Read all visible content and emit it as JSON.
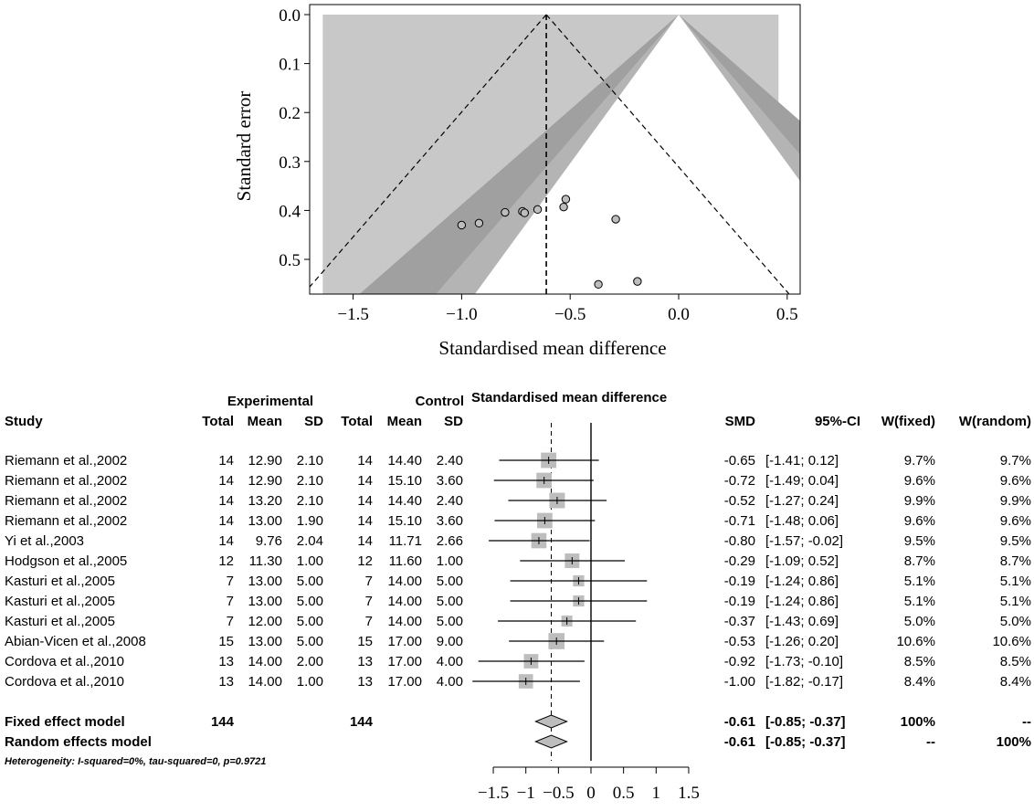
{
  "chart_data": [
    {
      "type": "scatter",
      "subtype": "contour-enhanced funnel plot",
      "title": "",
      "xlabel": "Standardised mean difference",
      "ylabel": "Standard error",
      "xlim": [
        -1.65,
        0.48
      ],
      "ylim": [
        0.57,
        0.0
      ],
      "y_reversed": true,
      "x_ticks": [
        "−1.5",
        "−1.0",
        "−0.5",
        "0.0",
        "0.5"
      ],
      "x_tick_values": [
        -1.5,
        -1.0,
        -0.5,
        0.0,
        0.5
      ],
      "y_ticks": [
        "0.0",
        "0.1",
        "0.2",
        "0.3",
        "0.4",
        "0.5"
      ],
      "y_tick_values": [
        0.0,
        0.1,
        0.2,
        0.3,
        0.4,
        0.5
      ],
      "pooled_estimate": -0.61,
      "contour_colors": [
        "#c8c8c8",
        "#b4b4b4",
        "#a0a0a0"
      ],
      "points": [
        {
          "x": -0.65,
          "y": 0.398
        },
        {
          "x": -0.72,
          "y": 0.402
        },
        {
          "x": -0.52,
          "y": 0.377
        },
        {
          "x": -0.71,
          "y": 0.405
        },
        {
          "x": -0.8,
          "y": 0.404
        },
        {
          "x": -0.29,
          "y": 0.418
        },
        {
          "x": -0.19,
          "y": 0.545
        },
        {
          "x": -0.37,
          "y": 0.551
        },
        {
          "x": -0.53,
          "y": 0.393
        },
        {
          "x": -0.92,
          "y": 0.426
        },
        {
          "x": -1.0,
          "y": 0.43
        }
      ],
      "grid": false
    },
    {
      "type": "table",
      "subtype": "forest plot",
      "group_header_experimental": "Experimental",
      "group_header_control": "Control",
      "plot_header": "Standardised mean difference",
      "columns": [
        "Study",
        "Total",
        "Mean",
        "SD",
        "Total",
        "Mean",
        "SD",
        "SMD",
        "95%-CI",
        "W(fixed)",
        "W(random)"
      ],
      "rows": [
        {
          "study": "Riemann et al.,2002",
          "e_total": "14",
          "e_mean": "12.90",
          "e_sd": "2.10",
          "c_total": "14",
          "c_mean": "14.40",
          "c_sd": "2.40",
          "smd": "-0.65",
          "ci": "[-1.41;  0.12]",
          "w_fixed": "9.7%",
          "w_random": "9.7%",
          "est": -0.65,
          "lo": -1.41,
          "hi": 0.12,
          "weight": 9.7
        },
        {
          "study": "Riemann et al.,2002",
          "e_total": "14",
          "e_mean": "12.90",
          "e_sd": "2.10",
          "c_total": "14",
          "c_mean": "15.10",
          "c_sd": "3.60",
          "smd": "-0.72",
          "ci": "[-1.49;  0.04]",
          "w_fixed": "9.6%",
          "w_random": "9.6%",
          "est": -0.72,
          "lo": -1.49,
          "hi": 0.04,
          "weight": 9.6
        },
        {
          "study": "Riemann et al.,2002",
          "e_total": "14",
          "e_mean": "13.20",
          "e_sd": "2.10",
          "c_total": "14",
          "c_mean": "14.40",
          "c_sd": "2.40",
          "smd": "-0.52",
          "ci": "[-1.27;  0.24]",
          "w_fixed": "9.9%",
          "w_random": "9.9%",
          "est": -0.52,
          "lo": -1.27,
          "hi": 0.24,
          "weight": 9.9
        },
        {
          "study": "Riemann et al.,2002",
          "e_total": "14",
          "e_mean": "13.00",
          "e_sd": "1.90",
          "c_total": "14",
          "c_mean": "15.10",
          "c_sd": "3.60",
          "smd": "-0.71",
          "ci": "[-1.48;  0.06]",
          "w_fixed": "9.6%",
          "w_random": "9.6%",
          "est": -0.71,
          "lo": -1.48,
          "hi": 0.06,
          "weight": 9.6
        },
        {
          "study": "Yi et al.,2003",
          "e_total": "14",
          "e_mean": "9.76",
          "e_sd": "2.04",
          "c_total": "14",
          "c_mean": "11.71",
          "c_sd": "2.66",
          "smd": "-0.80",
          "ci": "[-1.57; -0.02]",
          "w_fixed": "9.5%",
          "w_random": "9.5%",
          "est": -0.8,
          "lo": -1.57,
          "hi": -0.02,
          "weight": 9.5
        },
        {
          "study": "Hodgson et al.,2005",
          "e_total": "12",
          "e_mean": "11.30",
          "e_sd": "1.00",
          "c_total": "12",
          "c_mean": "11.60",
          "c_sd": "1.00",
          "smd": "-0.29",
          "ci": "[-1.09;  0.52]",
          "w_fixed": "8.7%",
          "w_random": "8.7%",
          "est": -0.29,
          "lo": -1.09,
          "hi": 0.52,
          "weight": 8.7
        },
        {
          "study": "Kasturi et al.,2005",
          "e_total": "7",
          "e_mean": "13.00",
          "e_sd": "5.00",
          "c_total": "7",
          "c_mean": "14.00",
          "c_sd": "5.00",
          "smd": "-0.19",
          "ci": "[-1.24;  0.86]",
          "w_fixed": "5.1%",
          "w_random": "5.1%",
          "est": -0.19,
          "lo": -1.24,
          "hi": 0.86,
          "weight": 5.1
        },
        {
          "study": "Kasturi et al.,2005",
          "e_total": "7",
          "e_mean": "13.00",
          "e_sd": "5.00",
          "c_total": "7",
          "c_mean": "14.00",
          "c_sd": "5.00",
          "smd": "-0.19",
          "ci": "[-1.24;  0.86]",
          "w_fixed": "5.1%",
          "w_random": "5.1%",
          "est": -0.19,
          "lo": -1.24,
          "hi": 0.86,
          "weight": 5.1
        },
        {
          "study": "Kasturi et al.,2005",
          "e_total": "7",
          "e_mean": "12.00",
          "e_sd": "5.00",
          "c_total": "7",
          "c_mean": "14.00",
          "c_sd": "5.00",
          "smd": "-0.37",
          "ci": "[-1.43;  0.69]",
          "w_fixed": "5.0%",
          "w_random": "5.0%",
          "est": -0.37,
          "lo": -1.43,
          "hi": 0.69,
          "weight": 5.0
        },
        {
          "study": "Abian-Vicen et al.,2008",
          "e_total": "15",
          "e_mean": "13.00",
          "e_sd": "5.00",
          "c_total": "15",
          "c_mean": "17.00",
          "c_sd": "9.00",
          "smd": "-0.53",
          "ci": "[-1.26;  0.20]",
          "w_fixed": "10.6%",
          "w_random": "10.6%",
          "est": -0.53,
          "lo": -1.26,
          "hi": 0.2,
          "weight": 10.6
        },
        {
          "study": "Cordova et al.,2010",
          "e_total": "13",
          "e_mean": "14.00",
          "e_sd": "2.00",
          "c_total": "13",
          "c_mean": "17.00",
          "c_sd": "4.00",
          "smd": "-0.92",
          "ci": "[-1.73; -0.10]",
          "w_fixed": "8.5%",
          "w_random": "8.5%",
          "est": -0.92,
          "lo": -1.73,
          "hi": -0.1,
          "weight": 8.5
        },
        {
          "study": "Cordova et al.,2010",
          "e_total": "13",
          "e_mean": "14.00",
          "e_sd": "1.00",
          "c_total": "13",
          "c_mean": "17.00",
          "c_sd": "4.00",
          "smd": "-1.00",
          "ci": "[-1.82; -0.17]",
          "w_fixed": "8.4%",
          "w_random": "8.4%",
          "est": -1.0,
          "lo": -1.82,
          "hi": -0.17,
          "weight": 8.4
        }
      ],
      "summary": [
        {
          "label": "Fixed effect model",
          "e_total": "144",
          "c_total": "144",
          "smd": "-0.61",
          "ci": "[-0.85; -0.37]",
          "w_fixed": "100%",
          "w_random": "--",
          "est": -0.61,
          "lo": -0.85,
          "hi": -0.37
        },
        {
          "label": "Random effects model",
          "e_total": "",
          "c_total": "",
          "smd": "-0.61",
          "ci": "[-0.85; -0.37]",
          "w_fixed": "--",
          "w_random": "100%",
          "est": -0.61,
          "lo": -0.85,
          "hi": -0.37
        }
      ],
      "heterogeneity": "Heterogeneity: I-squared=0%, tau-squared=0, p=0.9721",
      "xlim": [
        -1.5,
        1.5
      ],
      "x_ticks": [
        "−1.5",
        "−1",
        "−0.5",
        "0",
        "0.5",
        "1",
        "1.5"
      ],
      "x_tick_values": [
        -1.5,
        -1.0,
        -0.5,
        0.0,
        0.5,
        1.0,
        1.5
      ],
      "box_color": "#bdbdbd"
    }
  ]
}
